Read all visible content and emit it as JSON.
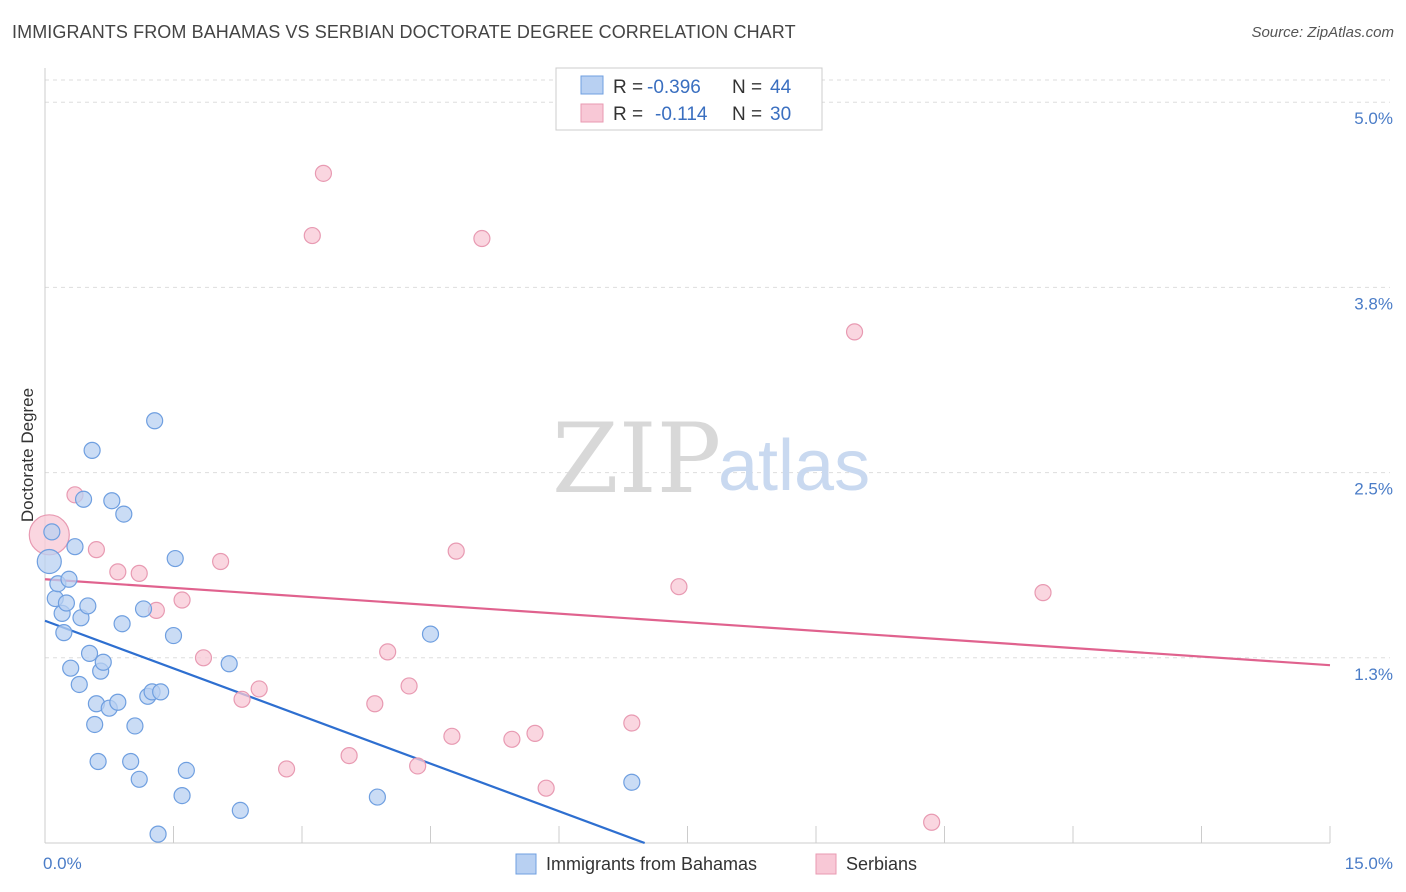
{
  "header": {
    "title": "IMMIGRANTS FROM BAHAMAS VS SERBIAN DOCTORATE DEGREE CORRELATION CHART",
    "source": "Source: ZipAtlas.com"
  },
  "watermark": {
    "zip": "ZIP",
    "atlas": "atlas"
  },
  "legend": {
    "series1": {
      "r_label": "R =",
      "r_value": "-0.396",
      "n_label": "N =",
      "n_value": "44"
    },
    "series2": {
      "r_label": "R =",
      "r_value": "-0.114",
      "n_label": "N =",
      "n_value": "30"
    }
  },
  "colors": {
    "blue_fill": "#b8d0f2",
    "blue_stroke": "#6f9fe0",
    "blue_line": "#2e6fd0",
    "pink_fill": "#f8c8d6",
    "pink_stroke": "#e89ab2",
    "pink_line": "#e0628e",
    "grid": "#dddddd",
    "tick": "#4a7cc7"
  },
  "chart_data": {
    "type": "scatter",
    "title": "IMMIGRANTS FROM BAHAMAS VS SERBIAN DOCTORATE DEGREE CORRELATION CHART",
    "xlabel": "",
    "ylabel": "Doctorate Degree",
    "xlim": [
      0,
      15
    ],
    "ylim": [
      0,
      5.15
    ],
    "x_tick_labels": [
      {
        "v": 0,
        "label": "0.0%"
      },
      {
        "v": 15,
        "label": "15.0%"
      }
    ],
    "y_ticks": [
      {
        "v": 1.25,
        "label": "1.3%"
      },
      {
        "v": 2.5,
        "label": "2.5%"
      },
      {
        "v": 3.75,
        "label": "3.8%"
      },
      {
        "v": 5.0,
        "label": "5.0%"
      }
    ],
    "series": [
      {
        "name": "Immigrants from Bahamas",
        "color": "blue",
        "trend": {
          "x0": 0,
          "y0": 1.5,
          "x1": 7.0,
          "y1": 0.0
        },
        "points": [
          {
            "x": 0.05,
            "y": 1.9,
            "s": 12
          },
          {
            "x": 0.08,
            "y": 2.1
          },
          {
            "x": 0.12,
            "y": 1.65
          },
          {
            "x": 0.15,
            "y": 1.75
          },
          {
            "x": 0.2,
            "y": 1.55
          },
          {
            "x": 0.22,
            "y": 1.42
          },
          {
            "x": 0.25,
            "y": 1.62
          },
          {
            "x": 0.28,
            "y": 1.78
          },
          {
            "x": 0.3,
            "y": 1.18
          },
          {
            "x": 0.35,
            "y": 2.0
          },
          {
            "x": 0.4,
            "y": 1.07
          },
          {
            "x": 0.42,
            "y": 1.52
          },
          {
            "x": 0.45,
            "y": 2.32
          },
          {
            "x": 0.5,
            "y": 1.6
          },
          {
            "x": 0.52,
            "y": 1.28
          },
          {
            "x": 0.55,
            "y": 2.65
          },
          {
            "x": 0.58,
            "y": 0.8
          },
          {
            "x": 0.6,
            "y": 0.94
          },
          {
            "x": 0.62,
            "y": 0.55
          },
          {
            "x": 0.65,
            "y": 1.16
          },
          {
            "x": 0.68,
            "y": 1.22
          },
          {
            "x": 0.75,
            "y": 0.91
          },
          {
            "x": 0.78,
            "y": 2.31
          },
          {
            "x": 0.85,
            "y": 0.95
          },
          {
            "x": 0.9,
            "y": 1.48
          },
          {
            "x": 0.92,
            "y": 2.22
          },
          {
            "x": 1.0,
            "y": 0.55
          },
          {
            "x": 1.05,
            "y": 0.79
          },
          {
            "x": 1.1,
            "y": 0.43
          },
          {
            "x": 1.15,
            "y": 1.58
          },
          {
            "x": 1.2,
            "y": 0.99
          },
          {
            "x": 1.25,
            "y": 1.02
          },
          {
            "x": 1.28,
            "y": 2.85
          },
          {
            "x": 1.32,
            "y": 0.06
          },
          {
            "x": 1.35,
            "y": 1.02
          },
          {
            "x": 1.5,
            "y": 1.4
          },
          {
            "x": 1.52,
            "y": 1.92
          },
          {
            "x": 1.6,
            "y": 0.32
          },
          {
            "x": 1.65,
            "y": 0.49
          },
          {
            "x": 2.15,
            "y": 1.21
          },
          {
            "x": 2.28,
            "y": 0.22
          },
          {
            "x": 3.88,
            "y": 0.31
          },
          {
            "x": 4.5,
            "y": 1.41
          },
          {
            "x": 6.85,
            "y": 0.41
          }
        ]
      },
      {
        "name": "Serbians",
        "color": "pink",
        "trend": {
          "x0": 0,
          "y0": 1.78,
          "x1": 15,
          "y1": 1.2
        },
        "points": [
          {
            "x": 0.05,
            "y": 2.08,
            "s": 20
          },
          {
            "x": 0.35,
            "y": 2.35
          },
          {
            "x": 0.6,
            "y": 1.98
          },
          {
            "x": 0.85,
            "y": 1.83
          },
          {
            "x": 1.1,
            "y": 1.82
          },
          {
            "x": 1.3,
            "y": 1.57
          },
          {
            "x": 1.6,
            "y": 1.64
          },
          {
            "x": 1.85,
            "y": 1.25
          },
          {
            "x": 2.05,
            "y": 1.9
          },
          {
            "x": 2.3,
            "y": 0.97
          },
          {
            "x": 2.5,
            "y": 1.04
          },
          {
            "x": 2.82,
            "y": 0.5
          },
          {
            "x": 3.12,
            "y": 4.1
          },
          {
            "x": 3.25,
            "y": 4.52
          },
          {
            "x": 3.55,
            "y": 0.59
          },
          {
            "x": 3.85,
            "y": 0.94
          },
          {
            "x": 4.0,
            "y": 1.29
          },
          {
            "x": 4.25,
            "y": 1.06
          },
          {
            "x": 4.35,
            "y": 0.52
          },
          {
            "x": 4.75,
            "y": 0.72
          },
          {
            "x": 4.8,
            "y": 1.97
          },
          {
            "x": 5.1,
            "y": 4.08
          },
          {
            "x": 5.45,
            "y": 0.7
          },
          {
            "x": 5.72,
            "y": 0.74
          },
          {
            "x": 5.85,
            "y": 0.37
          },
          {
            "x": 6.85,
            "y": 0.81
          },
          {
            "x": 7.4,
            "y": 1.73
          },
          {
            "x": 9.45,
            "y": 3.45
          },
          {
            "x": 10.35,
            "y": 0.14
          },
          {
            "x": 11.65,
            "y": 1.69
          }
        ]
      }
    ]
  },
  "bottom_legend": {
    "item1": "Immigrants from Bahamas",
    "item2": "Serbians"
  }
}
